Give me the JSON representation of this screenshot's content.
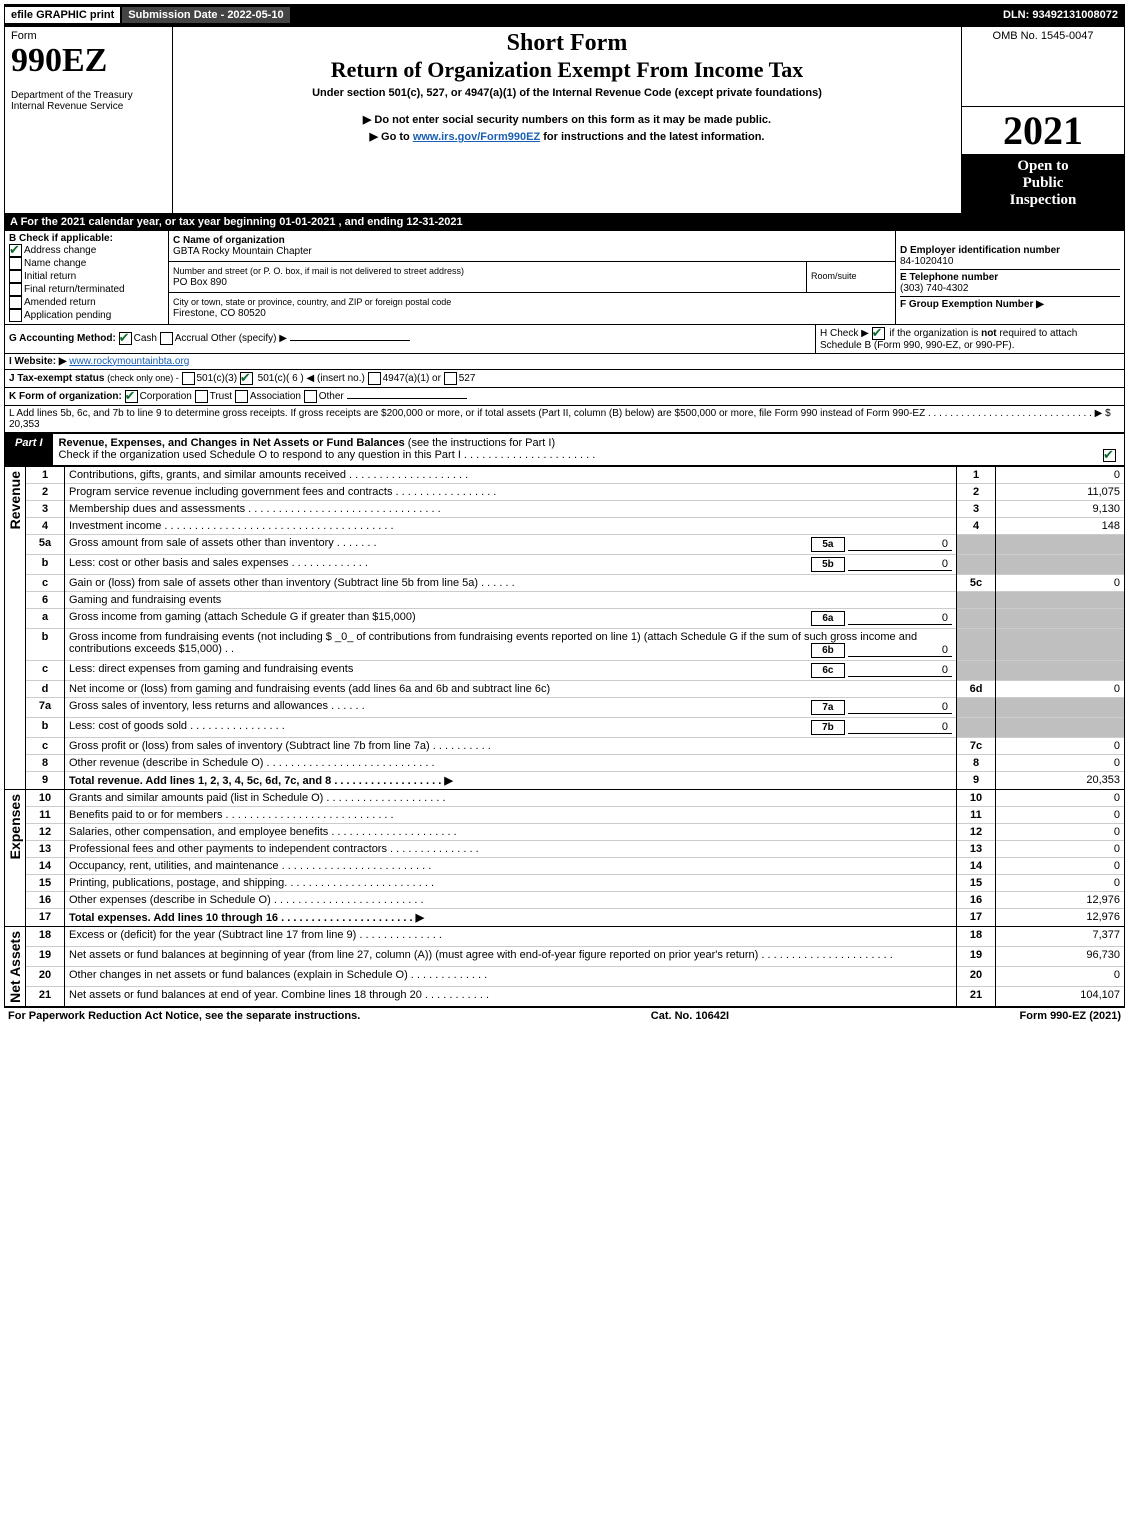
{
  "topbar": {
    "print_label": "efile GRAPHIC print",
    "submission_label": "Submission Date - 2022-05-10",
    "dln_label": "DLN: 93492131008072"
  },
  "header": {
    "form_label": "Form",
    "form_number": "990EZ",
    "dept": "Department of the Treasury\nInternal Revenue Service",
    "short_form": "Short Form",
    "title": "Return of Organization Exempt From Income Tax",
    "under_section": "Under section 501(c), 527, or 4947(a)(1) of the Internal Revenue Code (except private foundations)",
    "inst1": "▶ Do not enter social security numbers on this form as it may be made public.",
    "inst2_pre": "▶ Go to ",
    "inst2_link": "www.irs.gov/Form990EZ",
    "inst2_post": " for instructions and the latest information.",
    "omb": "OMB No. 1545-0047",
    "year": "2021",
    "open_to": "Open to",
    "public": "Public",
    "inspection": "Inspection"
  },
  "lineA": "A  For the 2021 calendar year, or tax year beginning 01-01-2021 , and ending 12-31-2021",
  "sectionB": {
    "label": "B  Check if applicable:",
    "address_change": "Address change",
    "name_change": "Name change",
    "initial_return": "Initial return",
    "final_return": "Final return/terminated",
    "amended_return": "Amended return",
    "app_pending": "Application pending"
  },
  "sectionC": {
    "label": "C Name of organization",
    "name": "GBTA Rocky Mountain Chapter",
    "street_label": "Number and street (or P. O. box, if mail is not delivered to street address)",
    "room_label": "Room/suite",
    "street": "PO Box 890",
    "city_label": "City or town, state or province, country, and ZIP or foreign postal code",
    "city": "Firestone, CO  80520"
  },
  "sectionD": {
    "label": "D Employer identification number",
    "value": "84-1020410"
  },
  "sectionE": {
    "label": "E Telephone number",
    "value": "(303) 740-4302"
  },
  "sectionF": {
    "label": "F Group Exemption Number   ▶"
  },
  "sectionG": {
    "label": "G Accounting Method:",
    "cash": "Cash",
    "accrual": "Accrual",
    "other": "Other (specify) ▶"
  },
  "sectionH": {
    "label_pre": "H  Check ▶ ",
    "label_post": " if the organization is ",
    "not": "not",
    "rest": " required to attach Schedule B (Form 990, 990-EZ, or 990-PF)."
  },
  "sectionI": {
    "label": "I Website: ▶",
    "value": "www.rockymountainbta.org"
  },
  "sectionJ": {
    "label": "J Tax-exempt status",
    "subtext": "(check only one) -",
    "o501c3": "501(c)(3)",
    "o501c_pre": "501(c)( ",
    "o501c_val": "6",
    "o501c_post": " ) ◀ (insert no.)",
    "o4947": "4947(a)(1) or",
    "o527": "527"
  },
  "sectionK": {
    "label": "K Form of organization:",
    "corp": "Corporation",
    "trust": "Trust",
    "assoc": "Association",
    "other": "Other"
  },
  "sectionL": {
    "text": "L Add lines 5b, 6c, and 7b to line 9 to determine gross receipts. If gross receipts are $200,000 or more, or if total assets (Part II, column (B) below) are $500,000 or more, file Form 990 instead of Form 990-EZ . . . . . . . . . . . . . . . . . . . . . . . . . . . . . . ▶ $ ",
    "value": "20,353"
  },
  "part1": {
    "label": "Part I",
    "title": "Revenue, Expenses, and Changes in Net Assets or Fund Balances ",
    "title_post": "(see the instructions for Part I)",
    "check_note": "Check if the organization used Schedule O to respond to any question in this Part I . . . . . . . . . . . . . . . . . . . . . ."
  },
  "groups": {
    "revenue": "Revenue",
    "expenses": "Expenses",
    "net_assets": "Net Assets"
  },
  "lines": [
    {
      "n": "1",
      "desc": "Contributions, gifts, grants, and similar amounts received . . . . . . . . . . . . . . . . . . . .",
      "box": "1",
      "amt": "0"
    },
    {
      "n": "2",
      "desc": "Program service revenue including government fees and contracts . . . . . . . . . . . . . . . . .",
      "box": "2",
      "amt": "11,075"
    },
    {
      "n": "3",
      "desc": "Membership dues and assessments . . . . . . . . . . . . . . . . . . . . . . . . . . . . . . . .",
      "box": "3",
      "amt": "9,130"
    },
    {
      "n": "4",
      "desc": "Investment income . . . . . . . . . . . . . . . . . . . . . . . . . . . . . . . . . . . . . .",
      "box": "4",
      "amt": "148"
    },
    {
      "n": "5a",
      "desc": "Gross amount from sale of assets other than inventory . . . . . . .",
      "sub": "5a",
      "subval": "0"
    },
    {
      "n": "b",
      "desc": "Less: cost or other basis and sales expenses . . . . . . . . . . . . .",
      "sub": "5b",
      "subval": "0"
    },
    {
      "n": "c",
      "desc": "Gain or (loss) from sale of assets other than inventory (Subtract line 5b from line 5a) . . . . . .",
      "box": "5c",
      "amt": "0"
    },
    {
      "n": "6",
      "desc": "Gaming and fundraising events"
    },
    {
      "n": "a",
      "desc": "Gross income from gaming (attach Schedule G if greater than $15,000)",
      "sub": "6a",
      "subval": "0"
    },
    {
      "n": "b",
      "desc": "Gross income from fundraising events (not including $ _0_ of contributions from fundraising events reported on line 1) (attach Schedule G if the sum of such gross income and contributions exceeds $15,000)   .  .",
      "sub": "6b",
      "subval": "0"
    },
    {
      "n": "c",
      "desc": "Less: direct expenses from gaming and fundraising events",
      "sub": "6c",
      "subval": "0"
    },
    {
      "n": "d",
      "desc": "Net income or (loss) from gaming and fundraising events (add lines 6a and 6b and subtract line 6c)",
      "box": "6d",
      "amt": "0"
    },
    {
      "n": "7a",
      "desc": "Gross sales of inventory, less returns and allowances . . . . . .",
      "sub": "7a",
      "subval": "0"
    },
    {
      "n": "b",
      "desc": "Less: cost of goods sold        . . . . . . . . . . . . . . . .",
      "sub": "7b",
      "subval": "0"
    },
    {
      "n": "c",
      "desc": "Gross profit or (loss) from sales of inventory (Subtract line 7b from line 7a) . . . . . . . . . .",
      "box": "7c",
      "amt": "0"
    },
    {
      "n": "8",
      "desc": "Other revenue (describe in Schedule O) . . . . . . . . . . . . . . . . . . . . . . . . . . . .",
      "box": "8",
      "amt": "0"
    },
    {
      "n": "9",
      "desc": "Total revenue. Add lines 1, 2, 3, 4, 5c, 6d, 7c, and 8  . . . . . . . . . . . . . . . . . .      ▶",
      "box": "9",
      "amt": "20,353",
      "bold": true
    }
  ],
  "exp_lines": [
    {
      "n": "10",
      "desc": "Grants and similar amounts paid (list in Schedule O) . . . . . . . . . . . . . . . . . . . .",
      "box": "10",
      "amt": "0"
    },
    {
      "n": "11",
      "desc": "Benefits paid to or for members      . . . . . . . . . . . . . . . . . . . . . . . . . . . .",
      "box": "11",
      "amt": "0"
    },
    {
      "n": "12",
      "desc": "Salaries, other compensation, and employee benefits . . . . . . . . . . . . . . . . . . . . .",
      "box": "12",
      "amt": "0"
    },
    {
      "n": "13",
      "desc": "Professional fees and other payments to independent contractors . . . . . . . . . . . . . . .",
      "box": "13",
      "amt": "0"
    },
    {
      "n": "14",
      "desc": "Occupancy, rent, utilities, and maintenance . . . . . . . . . . . . . . . . . . . . . . . . .",
      "box": "14",
      "amt": "0"
    },
    {
      "n": "15",
      "desc": "Printing, publications, postage, and shipping. . . . . . . . . . . . . . . . . . . . . . . . .",
      "box": "15",
      "amt": "0"
    },
    {
      "n": "16",
      "desc": "Other expenses (describe in Schedule O)     . . . . . . . . . . . . . . . . . . . . . . . . .",
      "box": "16",
      "amt": "12,976"
    },
    {
      "n": "17",
      "desc": "Total expenses. Add lines 10 through 16     . . . . . . . . . . . . . . . . . . . . . .     ▶",
      "box": "17",
      "amt": "12,976",
      "bold": true
    }
  ],
  "na_lines": [
    {
      "n": "18",
      "desc": "Excess or (deficit) for the year (Subtract line 17 from line 9)       . . . . . . . . . . . . . .",
      "box": "18",
      "amt": "7,377"
    },
    {
      "n": "19",
      "desc": "Net assets or fund balances at beginning of year (from line 27, column (A)) (must agree with end-of-year figure reported on prior year's return) . . . . . . . . . . . . . . . . . . . . . .",
      "box": "19",
      "amt": "96,730"
    },
    {
      "n": "20",
      "desc": "Other changes in net assets or fund balances (explain in Schedule O) . . . . . . . . . . . . .",
      "box": "20",
      "amt": "0"
    },
    {
      "n": "21",
      "desc": "Net assets or fund balances at end of year. Combine lines 18 through 20 . . . . . . . . . . .",
      "box": "21",
      "amt": "104,107"
    }
  ],
  "footer": {
    "left": "For Paperwork Reduction Act Notice, see the separate instructions.",
    "mid": "Cat. No. 10642I",
    "right_pre": "Form ",
    "right_form": "990-EZ",
    "right_post": " (2021)"
  }
}
